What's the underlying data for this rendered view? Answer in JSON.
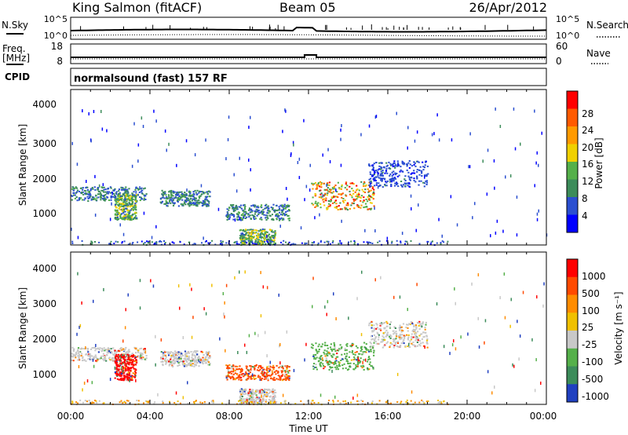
{
  "header": {
    "site": "King Salmon (fitACF)",
    "beam": "Beam 05",
    "date": "26/Apr/2012"
  },
  "noise_panel": {
    "left_label": "N.Sky",
    "right_label": "N.Search",
    "left_ticks": [
      "10^5",
      "10^0"
    ],
    "right_ticks": [
      "10^5",
      "10^0"
    ]
  },
  "freq_panel": {
    "left_label_line1": "Freq.",
    "left_label_line2": "[MHz]",
    "right_label": "Nave",
    "left_ticks": [
      "18",
      "8"
    ],
    "right_ticks": [
      "60",
      "0"
    ]
  },
  "cpid_panel": {
    "label": "CPID",
    "text": "normalsound (fast) 157 RF"
  },
  "power_panel": {
    "ylabel": "Slant Range [km]",
    "yticks": [
      "4000",
      "3000",
      "2000",
      "1000"
    ],
    "colorbar_label": "Power [dB]",
    "colorbar_ticks": [
      "28",
      "24",
      "20",
      "16",
      "12",
      "8",
      "4"
    ],
    "colors": [
      "#0000ff",
      "#2b4fd0",
      "#3c8c5a",
      "#55b04a",
      "#f0d000",
      "#ff9a00",
      "#ff5a00",
      "#ff0000"
    ]
  },
  "velocity_panel": {
    "ylabel": "Slant Range [km]",
    "yticks": [
      "4000",
      "3000",
      "2000",
      "1000"
    ],
    "colorbar_label": "Velocity [m s⁻¹]",
    "colorbar_ticks": [
      "1000",
      "500",
      "100",
      "25",
      "-25",
      "-100",
      "-500",
      "-1000"
    ],
    "colors": [
      "#2040c0",
      "#3c8c5a",
      "#55b04a",
      "#c8c8c8",
      "#f0c000",
      "#ff8c00",
      "#ff4a00",
      "#ff0000"
    ]
  },
  "x_axis": {
    "label": "Time UT",
    "ticks": [
      "00:00",
      "04:00",
      "08:00",
      "12:00",
      "16:00",
      "20:00",
      "00:00"
    ]
  },
  "chart_data": {
    "type": "heatmap",
    "title": "King Salmon (fitACF) Beam 05 26/Apr/2012",
    "xlabel": "Time UT",
    "ylabel": "Slant Range [km]",
    "x_range_hours": [
      0,
      24
    ],
    "y_range_km": [
      180,
      4600
    ],
    "panels": [
      "Power [dB]",
      "Velocity [m s⁻¹]"
    ],
    "power_scale_db": [
      0,
      30
    ],
    "velocity_scale": [
      "-1000",
      "-500",
      "-100",
      "-25",
      "25",
      "100",
      "500",
      "1000"
    ],
    "echo_regions": [
      {
        "t_start": 0.0,
        "t_end": 3.8,
        "range_min": 1450,
        "range_max": 1850,
        "peak_power_db": 12,
        "velocity": "-25 to 25"
      },
      {
        "t_start": 2.2,
        "t_end": 3.3,
        "range_min": 900,
        "range_max": 1650,
        "peak_power_db": 18,
        "velocity": "-1000 to -500"
      },
      {
        "t_start": 4.5,
        "t_end": 7.0,
        "range_min": 1300,
        "range_max": 1750,
        "peak_power_db": 12,
        "velocity": "-25 to 25"
      },
      {
        "t_start": 7.8,
        "t_end": 11.0,
        "range_min": 900,
        "range_max": 1350,
        "peak_power_db": 12,
        "velocity": "-500 to -100"
      },
      {
        "t_start": 8.5,
        "t_end": 10.3,
        "range_min": 200,
        "range_max": 650,
        "peak_power_db": 18,
        "velocity": "-25 to 25"
      },
      {
        "t_start": 12.1,
        "t_end": 15.3,
        "range_min": 1200,
        "range_max": 2000,
        "peak_power_db": 28,
        "velocity": "100 to 500"
      },
      {
        "t_start": 15.0,
        "t_end": 18.0,
        "range_min": 1850,
        "range_max": 2600,
        "peak_power_db": 8,
        "velocity": "-25 to 25"
      }
    ]
  }
}
